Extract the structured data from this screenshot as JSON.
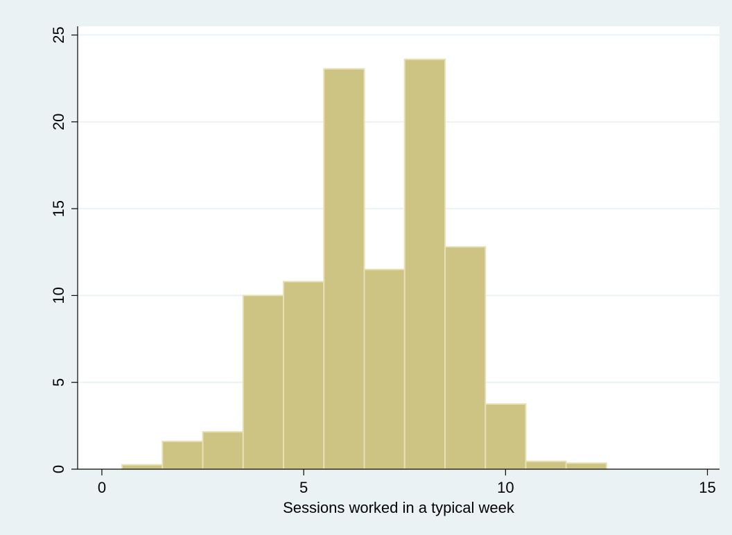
{
  "chart_data": {
    "type": "bar",
    "title": "",
    "xlabel": "Sessions worked in a typical week",
    "ylabel": "",
    "xlim": [
      -0.6,
      15.3
    ],
    "ylim": [
      0,
      25.5
    ],
    "x_ticks": [
      0,
      5,
      10,
      15
    ],
    "y_ticks": [
      0,
      5,
      10,
      15,
      20,
      25
    ],
    "grid": true,
    "bin_width": 1,
    "bins": [
      {
        "x": 1,
        "value": 0.25
      },
      {
        "x": 2,
        "value": 1.6
      },
      {
        "x": 3,
        "value": 2.15
      },
      {
        "x": 4,
        "value": 10.0
      },
      {
        "x": 5,
        "value": 10.8
      },
      {
        "x": 6,
        "value": 23.05
      },
      {
        "x": 7,
        "value": 11.5
      },
      {
        "x": 8,
        "value": 23.6
      },
      {
        "x": 9,
        "value": 12.8
      },
      {
        "x": 10,
        "value": 3.75
      },
      {
        "x": 11,
        "value": 0.45
      },
      {
        "x": 12,
        "value": 0.35
      }
    ],
    "colors": {
      "background": "#eaf2f3",
      "plot_area": "#ffffff",
      "bar_fill": "#cdc383",
      "bar_edge": "#e7e0b5",
      "grid": "#eaf2f3",
      "axis": "#000000"
    }
  }
}
